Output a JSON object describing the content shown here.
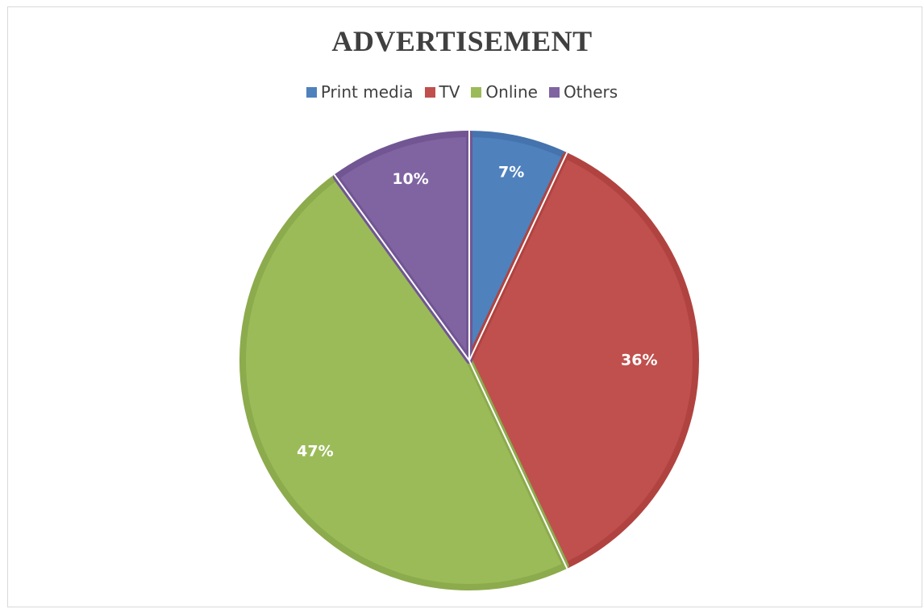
{
  "chart_data": {
    "type": "pie",
    "title": "ADVERTISEMENT",
    "legend_position": "top",
    "slices": [
      {
        "name": "Print media",
        "value": 7,
        "label": "7%",
        "color": "#4f81bd",
        "edge": "#4573ad"
      },
      {
        "name": "TV",
        "value": 36,
        "label": "36%",
        "color": "#c0504d",
        "edge": "#b04340"
      },
      {
        "name": "Online",
        "value": 47,
        "label": "47%",
        "color": "#9bbb59",
        "edge": "#8cab4c"
      },
      {
        "name": "Others",
        "value": 10,
        "label": "10%",
        "color": "#8064a2",
        "edge": "#715693"
      }
    ]
  }
}
